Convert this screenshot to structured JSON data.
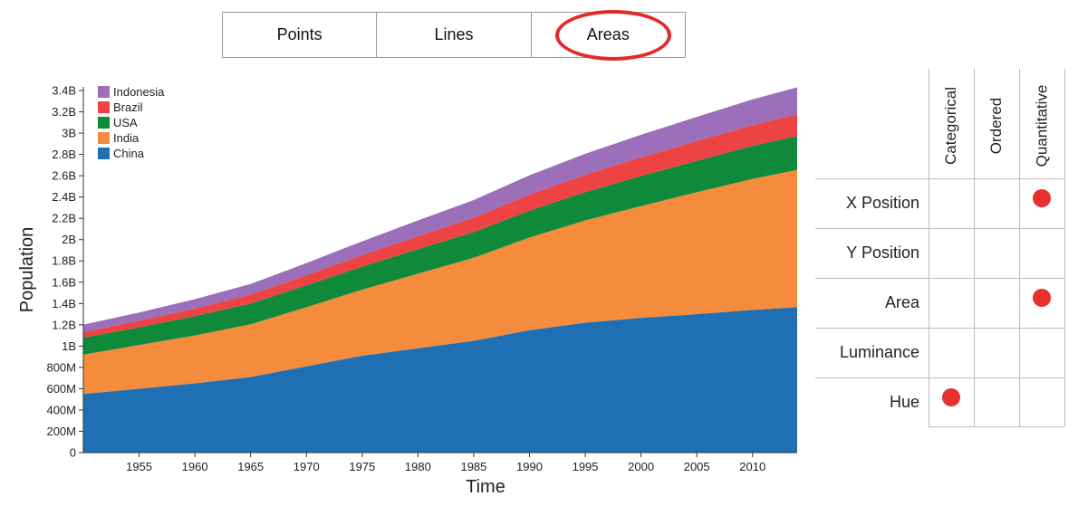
{
  "tabs": [
    {
      "label": "Points"
    },
    {
      "label": "Lines"
    },
    {
      "label": "Areas"
    }
  ],
  "chart_data": {
    "type": "area",
    "stacked": true,
    "xlabel": "Time",
    "ylabel": "Population",
    "xlim": [
      1950,
      2014
    ],
    "ylim": [
      0,
      3400000000
    ],
    "x_ticks": [
      1955,
      1960,
      1965,
      1970,
      1975,
      1980,
      1985,
      1990,
      1995,
      2000,
      2005,
      2010
    ],
    "y_ticks": [
      {
        "value": 0,
        "label": "0"
      },
      {
        "value": 200000000,
        "label": "200M"
      },
      {
        "value": 400000000,
        "label": "400M"
      },
      {
        "value": 600000000,
        "label": "600M"
      },
      {
        "value": 800000000,
        "label": "800M"
      },
      {
        "value": 1000000000,
        "label": "1B"
      },
      {
        "value": 1200000000,
        "label": "1.2B"
      },
      {
        "value": 1400000000,
        "label": "1.4B"
      },
      {
        "value": 1600000000,
        "label": "1.6B"
      },
      {
        "value": 1800000000,
        "label": "1.8B"
      },
      {
        "value": 2000000000,
        "label": "2B"
      },
      {
        "value": 2200000000,
        "label": "2.2B"
      },
      {
        "value": 2400000000,
        "label": "2.4B"
      },
      {
        "value": 2600000000,
        "label": "2.6B"
      },
      {
        "value": 2800000000,
        "label": "2.8B"
      },
      {
        "value": 3000000000,
        "label": "3B"
      },
      {
        "value": 3200000000,
        "label": "3.2B"
      },
      {
        "value": 3400000000,
        "label": "3.4B"
      }
    ],
    "x": [
      1950,
      1955,
      1960,
      1965,
      1970,
      1975,
      1980,
      1985,
      1990,
      1995,
      2000,
      2005,
      2010,
      2014
    ],
    "series": [
      {
        "name": "China",
        "color": "#1f6fb4",
        "values": [
          550,
          600,
          650,
          710,
          810,
          910,
          980,
          1050,
          1150,
          1220,
          1265,
          1300,
          1340,
          1365
        ]
      },
      {
        "name": "India",
        "color": "#f58b3d",
        "values": [
          370,
          410,
          450,
          495,
          555,
          620,
          700,
          780,
          870,
          960,
          1050,
          1145,
          1230,
          1290
        ]
      },
      {
        "name": "USA",
        "color": "#0e8a3a",
        "values": [
          158,
          166,
          181,
          194,
          205,
          216,
          230,
          240,
          252,
          266,
          282,
          295,
          309,
          318
        ]
      },
      {
        "name": "Brazil",
        "color": "#ee4343",
        "values": [
          54,
          62,
          72,
          84,
          96,
          108,
          122,
          136,
          150,
          162,
          176,
          186,
          196,
          203
        ]
      },
      {
        "name": "Indonesia",
        "color": "#9b6fba",
        "values": [
          70,
          77,
          88,
          100,
          114,
          130,
          148,
          165,
          182,
          198,
          212,
          226,
          242,
          254
        ]
      }
    ],
    "legend": {
      "position": "top-left",
      "order": [
        "Indonesia",
        "Brazil",
        "USA",
        "India",
        "China"
      ]
    }
  },
  "matrix": {
    "columns": [
      "Categorical",
      "Ordered",
      "Quantitative"
    ],
    "rows": [
      {
        "label": "X Position",
        "marks": [
          false,
          false,
          true
        ]
      },
      {
        "label": "Y Position",
        "marks": [
          false,
          false,
          false
        ]
      },
      {
        "label": "Area",
        "marks": [
          false,
          false,
          true
        ]
      },
      {
        "label": "Luminance",
        "marks": [
          false,
          false,
          false
        ]
      },
      {
        "label": "Hue",
        "marks": [
          true,
          false,
          false
        ]
      }
    ],
    "dot_color": "#e8302e"
  }
}
